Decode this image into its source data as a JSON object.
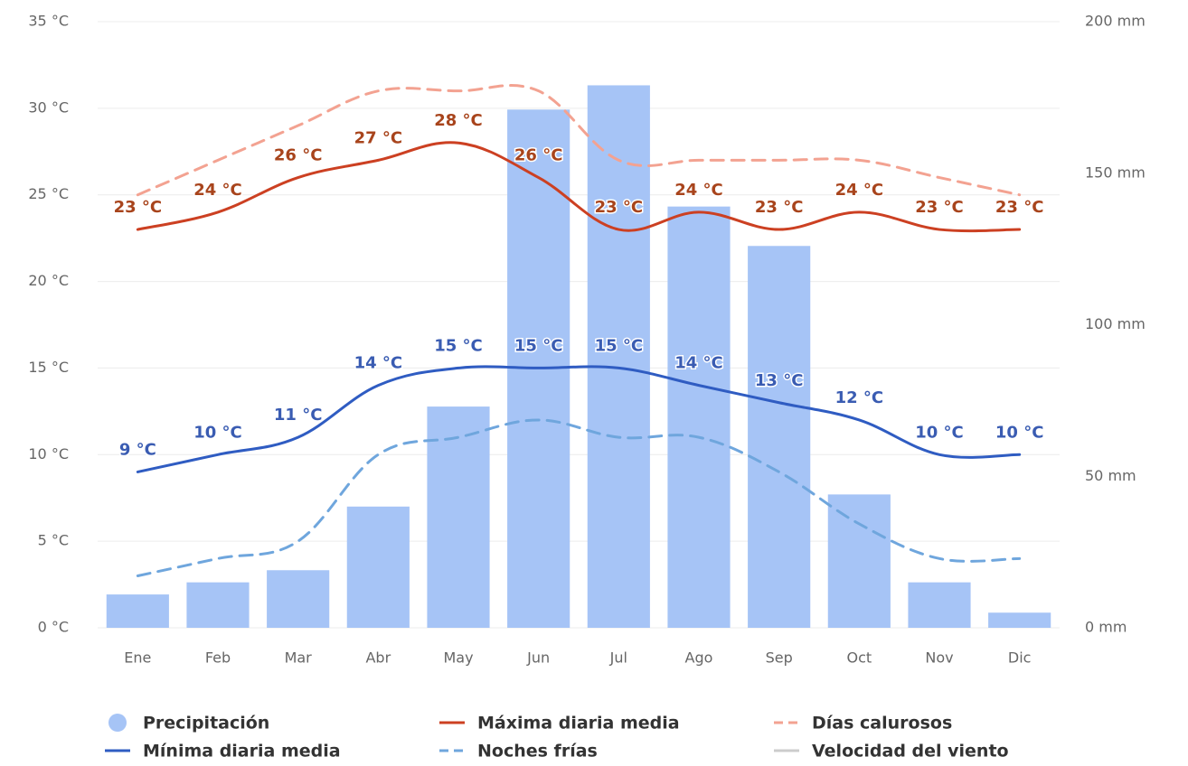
{
  "chart_data": {
    "type": "combo",
    "categories": [
      "Ene",
      "Feb",
      "Mar",
      "Abr",
      "May",
      "Jun",
      "Jul",
      "Ago",
      "Sep",
      "Oct",
      "Nov",
      "Dic"
    ],
    "ylim": [
      0,
      35
    ],
    "yticks": [
      {
        "value": 0,
        "label": "0 °C"
      },
      {
        "value": 5,
        "label": "5 °C"
      },
      {
        "value": 10,
        "label": "10 °C"
      },
      {
        "value": 15,
        "label": "15 °C"
      },
      {
        "value": 20,
        "label": "20 °C"
      },
      {
        "value": 25,
        "label": "25 °C"
      },
      {
        "value": 30,
        "label": "30 °C"
      },
      {
        "value": 35,
        "label": "35 °C"
      }
    ],
    "y2lim": [
      0,
      200
    ],
    "y2ticks": [
      {
        "value": 0,
        "label": "0 mm"
      },
      {
        "value": 50,
        "label": "50 mm"
      },
      {
        "value": 100,
        "label": "100 mm"
      },
      {
        "value": 150,
        "label": "150 mm"
      },
      {
        "value": 200,
        "label": "200 mm"
      }
    ],
    "grid": true,
    "legend": "bottom",
    "series": [
      {
        "name": "Precipitación",
        "type": "bar",
        "axis": "y2",
        "color": "#a6c4f6",
        "values": [
          11,
          15,
          19,
          40,
          73,
          171,
          179,
          139,
          126,
          44,
          15,
          5
        ]
      },
      {
        "name": "Máxima diaria media",
        "type": "line",
        "color": "#cc4022",
        "label_color": "#a8441c",
        "values": [
          23,
          24,
          26,
          27,
          28,
          26,
          23,
          24,
          23,
          24,
          23,
          23
        ],
        "value_labels": [
          "23 °C",
          "24 °C",
          "26 °C",
          "27 °C",
          "28 °C",
          "26 °C",
          "23 °C",
          "24 °C",
          "23 °C",
          "24 °C",
          "23 °C",
          "23 °C"
        ]
      },
      {
        "name": "Días calurosos",
        "type": "line",
        "dash": true,
        "color": "#f3a291",
        "values": [
          25,
          27,
          29,
          31,
          31,
          31,
          27,
          27,
          27,
          27,
          26,
          25
        ]
      },
      {
        "name": "Mínima diaria media",
        "type": "line",
        "color": "#2f5cc2",
        "label_color": "#3a5cb2",
        "values": [
          9,
          10,
          11,
          14,
          15,
          15,
          15,
          14,
          13,
          12,
          10,
          10
        ],
        "value_labels": [
          "9 °C",
          "10 °C",
          "11 °C",
          "14 °C",
          "15 °C",
          "15 °C",
          "15 °C",
          "14 °C",
          "13 °C",
          "12 °C",
          "10 °C",
          "10 °C"
        ]
      },
      {
        "name": "Noches frías",
        "type": "line",
        "dash": true,
        "color": "#6fa6dd",
        "values": [
          3,
          4,
          5,
          10,
          11,
          12,
          11,
          11,
          9,
          6,
          4,
          4
        ]
      },
      {
        "name": "Velocidad del viento",
        "type": "line",
        "hidden": true,
        "color": "#cccccc"
      }
    ]
  }
}
